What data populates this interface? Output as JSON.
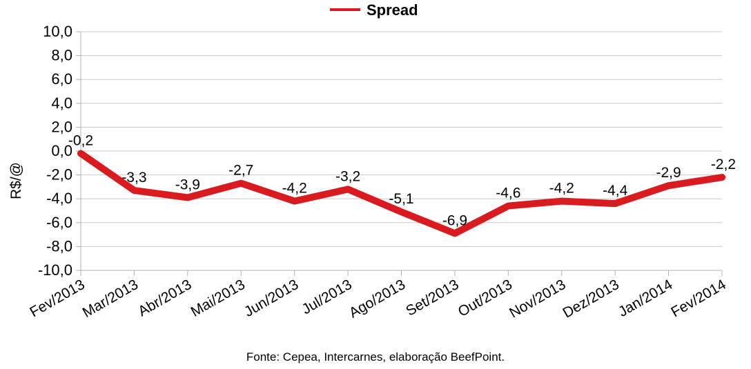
{
  "chart_data": {
    "type": "line",
    "title": "",
    "ylabel": "R$/@",
    "xlabel": "",
    "ylim": [
      -10,
      10
    ],
    "ytick_step": 2,
    "ytick_labels": [
      "10,0",
      "8,0",
      "6,0",
      "4,0",
      "2,0",
      "0,0",
      "-2,0",
      "-4,0",
      "-6,0",
      "-8,0",
      "-10,0"
    ],
    "grid": true,
    "legend": "top-center",
    "categories": [
      "Fev/2013",
      "Mar/2013",
      "Abr/2013",
      "Mai/2013",
      "Jun/2013",
      "Jul/2013",
      "Ago/2013",
      "Set/2013",
      "Out/2013",
      "Nov/2013",
      "Dez/2013",
      "Jan/2014",
      "Fev/2014"
    ],
    "series": [
      {
        "name": "Spread",
        "color": "#d91a1f",
        "values": [
          -0.2,
          -3.3,
          -3.9,
          -2.7,
          -4.2,
          -3.2,
          -5.1,
          -6.9,
          -4.6,
          -4.2,
          -4.4,
          -2.9,
          -2.2
        ],
        "labels": [
          "-0,2",
          "-3,3",
          "-3,9",
          "-2,7",
          "-4,2",
          "-3,2",
          "-5,1",
          "-6,9",
          "-4,6",
          "-4,2",
          "-4,4",
          "-2,9",
          "-2,2"
        ]
      }
    ]
  },
  "source_note": "Fonte: Cepea, Intercarnes, elaboração BeefPoint."
}
